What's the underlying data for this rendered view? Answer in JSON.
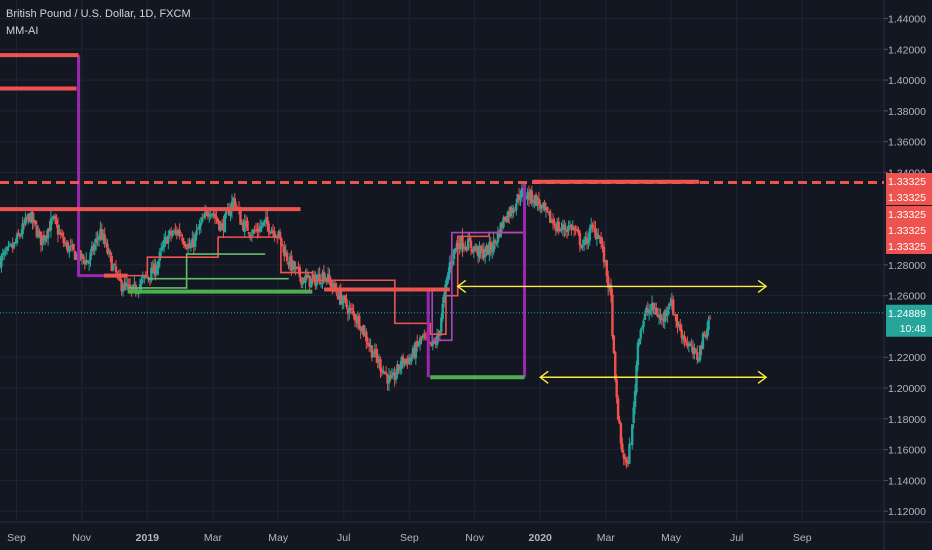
{
  "header": {
    "symbol": "British Pound / U.S. Dollar, 1D, FXCM",
    "indicator": "MM-AI"
  },
  "chart_data": {
    "type": "candlestick",
    "ylim": [
      1.113,
      1.452
    ],
    "y_ticks": [
      "1.44000",
      "1.42000",
      "1.40000",
      "1.38000",
      "1.36000",
      "1.34000",
      "1.28000",
      "1.26000",
      "1.22000",
      "1.20000",
      "1.18000",
      "1.16000",
      "1.14000",
      "1.12000"
    ],
    "x_ticks": [
      {
        "label": "Sep",
        "x": 2018.667
      },
      {
        "label": "Nov",
        "x": 2018.833
      },
      {
        "label": "2019",
        "x": 2019.0
      },
      {
        "label": "Mar",
        "x": 2019.167
      },
      {
        "label": "May",
        "x": 2019.333
      },
      {
        "label": "Jul",
        "x": 2019.5
      },
      {
        "label": "Sep",
        "x": 2019.667
      },
      {
        "label": "Nov",
        "x": 2019.833
      },
      {
        "label": "2020",
        "x": 2020.0
      },
      {
        "label": "Mar",
        "x": 2020.167
      },
      {
        "label": "May",
        "x": 2020.333
      },
      {
        "label": "Jul",
        "x": 2020.5
      },
      {
        "label": "Sep",
        "x": 2020.667
      }
    ],
    "x_range": [
      2018.625,
      2020.875
    ],
    "price_path": [
      [
        2018.625,
        1.283
      ],
      [
        2018.66,
        1.292
      ],
      [
        2018.7,
        1.312
      ],
      [
        2018.73,
        1.296
      ],
      [
        2018.76,
        1.309
      ],
      [
        2018.79,
        1.293
      ],
      [
        2018.82,
        1.286
      ],
      [
        2018.85,
        1.282
      ],
      [
        2018.88,
        1.302
      ],
      [
        2018.91,
        1.28
      ],
      [
        2018.93,
        1.268
      ],
      [
        2018.96,
        1.262
      ],
      [
        2018.99,
        1.27
      ],
      [
        2019.02,
        1.277
      ],
      [
        2019.05,
        1.298
      ],
      [
        2019.08,
        1.302
      ],
      [
        2019.11,
        1.29
      ],
      [
        2019.13,
        1.303
      ],
      [
        2019.16,
        1.317
      ],
      [
        2019.19,
        1.304
      ],
      [
        2019.22,
        1.323
      ],
      [
        2019.24,
        1.307
      ],
      [
        2019.27,
        1.301
      ],
      [
        2019.3,
        1.307
      ],
      [
        2019.33,
        1.301
      ],
      [
        2019.36,
        1.282
      ],
      [
        2019.39,
        1.272
      ],
      [
        2019.42,
        1.269
      ],
      [
        2019.45,
        1.274
      ],
      [
        2019.48,
        1.263
      ],
      [
        2019.51,
        1.252
      ],
      [
        2019.54,
        1.243
      ],
      [
        2019.57,
        1.225
      ],
      [
        2019.6,
        1.212
      ],
      [
        2019.62,
        1.203
      ],
      [
        2019.65,
        1.218
      ],
      [
        2019.67,
        1.219
      ],
      [
        2019.7,
        1.233
      ],
      [
        2019.72,
        1.226
      ],
      [
        2019.74,
        1.232
      ],
      [
        2019.75,
        1.25
      ],
      [
        2019.77,
        1.281
      ],
      [
        2019.79,
        1.295
      ],
      [
        2019.82,
        1.293
      ],
      [
        2019.85,
        1.287
      ],
      [
        2019.88,
        1.292
      ],
      [
        2019.91,
        1.311
      ],
      [
        2019.93,
        1.317
      ],
      [
        2019.95,
        1.327
      ],
      [
        2019.97,
        1.325
      ],
      [
        2019.99,
        1.322
      ],
      [
        2020.02,
        1.311
      ],
      [
        2020.05,
        1.303
      ],
      [
        2020.08,
        1.305
      ],
      [
        2020.11,
        1.292
      ],
      [
        2020.13,
        1.303
      ],
      [
        2020.15,
        1.3
      ],
      [
        2020.165,
        1.28
      ],
      [
        2020.18,
        1.258
      ],
      [
        2020.19,
        1.205
      ],
      [
        2020.205,
        1.164
      ],
      [
        2020.22,
        1.148
      ],
      [
        2020.235,
        1.175
      ],
      [
        2020.25,
        1.235
      ],
      [
        2020.27,
        1.249
      ],
      [
        2020.29,
        1.252
      ],
      [
        2020.31,
        1.243
      ],
      [
        2020.33,
        1.258
      ],
      [
        2020.35,
        1.241
      ],
      [
        2020.37,
        1.231
      ],
      [
        2020.39,
        1.222
      ],
      [
        2020.4,
        1.22
      ],
      [
        2020.42,
        1.236
      ],
      [
        2020.435,
        1.249
      ]
    ],
    "current_price": "1.24889",
    "countdown": "10:48",
    "resistance_label": "1.33325",
    "annotations": {
      "red_levels": [
        {
          "x1": 2018.625,
          "x2": 2018.825,
          "y": 1.4162
        },
        {
          "x1": 2018.625,
          "x2": 2018.82,
          "y": 1.3945
        },
        {
          "x1": 2018.625,
          "x2": 2019.39,
          "y": 1.3162
        },
        {
          "x1": 2018.89,
          "x2": 2018.95,
          "y": 1.273
        },
        {
          "x1": 2019.45,
          "x2": 2019.77,
          "y": 1.264
        },
        {
          "x1": 2019.98,
          "x2": 2020.405,
          "y": 1.334
        }
      ],
      "red_dashed": {
        "y": 1.3335
      },
      "green_levels": [
        {
          "x1": 2018.95,
          "x2": 2019.42,
          "y": 1.2626
        },
        {
          "x1": 2019.72,
          "x2": 2019.96,
          "y": 1.207
        }
      ],
      "purple_steps": [
        [
          [
            2018.825,
            1.4162
          ],
          [
            2018.825,
            1.273
          ],
          [
            2018.95,
            1.273
          ]
        ],
        [
          [
            2019.715,
            1.264
          ],
          [
            2019.715,
            1.207
          ]
        ],
        [
          [
            2019.96,
            1.207
          ],
          [
            2019.96,
            1.334
          ]
        ]
      ],
      "step_lines": [
        {
          "color": "#ef5350",
          "points": [
            [
              2018.95,
              1.273
            ],
            [
              2019.0,
              1.273
            ],
            [
              2019.0,
              1.285
            ],
            [
              2019.18,
              1.285
            ],
            [
              2019.18,
              1.298
            ],
            [
              2019.34,
              1.298
            ],
            [
              2019.34,
              1.275
            ],
            [
              2019.42,
              1.275
            ],
            [
              2019.42,
              1.27
            ],
            [
              2019.63,
              1.27
            ],
            [
              2019.63,
              1.242
            ],
            [
              2019.72,
              1.242
            ],
            [
              2019.72,
              1.235
            ],
            [
              2019.76,
              1.235
            ],
            [
              2019.76,
              1.26
            ],
            [
              2019.79,
              1.26
            ],
            [
              2019.79,
              1.2985
            ],
            [
              2019.87,
              1.2985
            ],
            [
              2019.87,
              1.301
            ],
            [
              2019.96,
              1.301
            ]
          ]
        },
        {
          "color": "#66bb6a",
          "points": [
            [
              2018.95,
              1.265
            ],
            [
              2019.1,
              1.265
            ],
            [
              2019.1,
              1.287
            ],
            [
              2019.3,
              1.287
            ]
          ]
        },
        {
          "color": "#66bb6a",
          "points": [
            [
              2019.0,
              1.271
            ],
            [
              2019.36,
              1.271
            ]
          ]
        },
        {
          "color": "#ab47bc",
          "points": [
            [
              2019.725,
              1.264
            ],
            [
              2019.725,
              1.231
            ],
            [
              2019.775,
              1.231
            ],
            [
              2019.775,
              1.301
            ],
            [
              2019.96,
              1.301
            ]
          ]
        }
      ],
      "yellow_arrows": [
        {
          "x1": 2019.79,
          "x2": 2020.575,
          "y": 1.266
        },
        {
          "x1": 2020.0,
          "x2": 2020.575,
          "y": 1.207
        }
      ]
    }
  }
}
